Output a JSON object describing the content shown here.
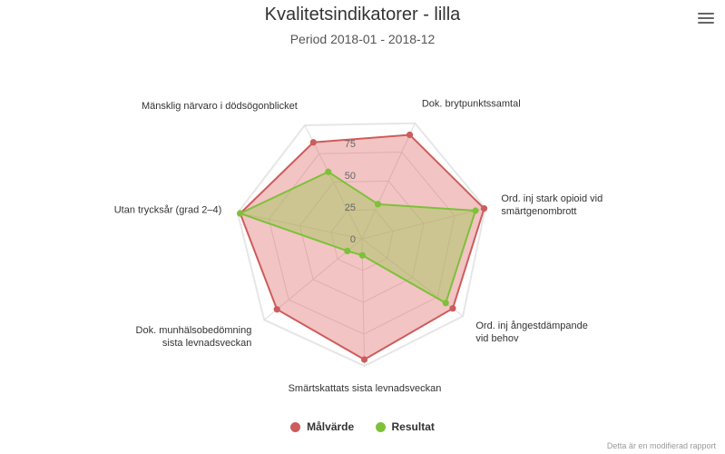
{
  "title": "Kvalitetsindikatorer - lilla",
  "subtitle": "Period 2018-01 - 2018-12",
  "menu_icon": "hamburger-menu-icon",
  "credits": "Detta är en modifierad rapport",
  "chart_data": {
    "type": "radar",
    "categories": [
      "Dok. brytpunktssamtal",
      "Ord. inj stark opioid vid smärtgenombrott",
      "Ord. inj ångestdämpande vid behov",
      "Smärtskattats sista levnadsveckan",
      "Dok. munhälsobedömning sista levnadsveckan",
      "Utan trycksår (grad 2–4)",
      "Mänsklig närvaro i dödsögonblicket"
    ],
    "category_lines": [
      [
        "Dok. brytpunktssamtal"
      ],
      [
        "Ord. inj stark opioid vid",
        "smärtgenombrott"
      ],
      [
        "Ord. inj ångestdämpande",
        "vid behov"
      ],
      [
        "Smärtskattats sista levnadsveckan"
      ],
      [
        "Dok. munhälsobedömning",
        "sista levnadsveckan"
      ],
      [
        "Utan trycksår (grad 2–4)"
      ],
      [
        "Mänsklig närvaro i dödsögonblicket"
      ]
    ],
    "ylim": [
      0,
      100
    ],
    "ticks": [
      "0",
      "25",
      "50",
      "75"
    ],
    "tick_values": [
      0,
      25,
      50,
      75
    ],
    "grid": true,
    "legend_position": "bottom-center",
    "series": [
      {
        "name": "Målvärde",
        "color": "#cd5c5c",
        "fill": "rgba(220,100,100,0.38)",
        "values": [
          90,
          99,
          90,
          95,
          87,
          98,
          85
        ]
      },
      {
        "name": "Resultat",
        "color": "#7dc13a",
        "fill": "rgba(150,200,70,0.40)",
        "values": [
          30,
          92,
          83,
          13,
          15,
          98,
          59
        ]
      }
    ]
  }
}
